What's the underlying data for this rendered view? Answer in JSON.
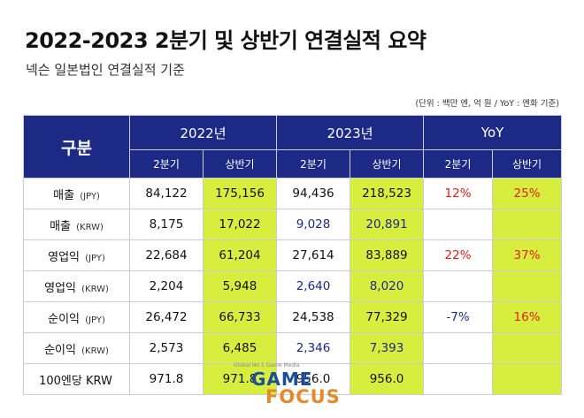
{
  "title": "2022-2023 2분기 및 상반기 연결실적 요약",
  "subtitle": "넥슨 일본법인 연결실적 기준",
  "unit_note": "(단위 : 백만 엔, 억 원 / YoY : 엔화 기준)",
  "header": {
    "category": "구분",
    "years": [
      "2022년",
      "2023년",
      "YoY"
    ],
    "sub": [
      "2분기",
      "상반기",
      "2분기",
      "상반기",
      "2분기",
      "상반기"
    ]
  },
  "rows": [
    {
      "label": "매출",
      "currency": "(JPY)",
      "v2022_q2": "84,122",
      "v2022_h1": "175,156",
      "v2023_q2": "94,436",
      "v2023_h1": "218,523",
      "yoy_q2": "12%",
      "yoy_h1": "25%"
    },
    {
      "label": "매출",
      "currency": "(KRW)",
      "v2022_q2": "8,175",
      "v2022_h1": "17,022",
      "v2023_q2": "9,028",
      "v2023_h1": "20,891",
      "yoy_q2": "",
      "yoy_h1": ""
    },
    {
      "label": "영업익",
      "currency": "(JPY)",
      "v2022_q2": "22,684",
      "v2022_h1": "61,204",
      "v2023_q2": "27,614",
      "v2023_h1": "83,889",
      "yoy_q2": "22%",
      "yoy_h1": "37%"
    },
    {
      "label": "영업익",
      "currency": "(KRW)",
      "v2022_q2": "2,204",
      "v2022_h1": "5,948",
      "v2023_q2": "2,640",
      "v2023_h1": "8,020",
      "yoy_q2": "",
      "yoy_h1": ""
    },
    {
      "label": "순이익",
      "currency": "(JPY)",
      "v2022_q2": "26,472",
      "v2022_h1": "66,733",
      "v2023_q2": "24,538",
      "v2023_h1": "77,329",
      "yoy_q2": "-7%",
      "yoy_h1": "16%"
    },
    {
      "label": "순이익",
      "currency": "(KRW)",
      "v2022_q2": "2,573",
      "v2022_h1": "6,485",
      "v2023_q2": "2,346",
      "v2023_h1": "7,393",
      "yoy_q2": "",
      "yoy_h1": ""
    },
    {
      "label": "100엔당 KRW",
      "currency": "",
      "v2022_q2": "971.8",
      "v2022_h1": "971.8",
      "v2023_q2": "956.0",
      "v2023_h1": "956.0",
      "yoy_q2": "",
      "yoy_h1": ""
    }
  ],
  "watermark": {
    "tagline": "Global No.1 Game Media",
    "line1": "GAME",
    "line2": "FOCUS"
  },
  "colors": {
    "header_bg": "#1c2a86",
    "highlight": "#d8ee3f",
    "positive": "#e0201b",
    "negative": "#1c2a86",
    "krw_text": "#1c2a86"
  }
}
